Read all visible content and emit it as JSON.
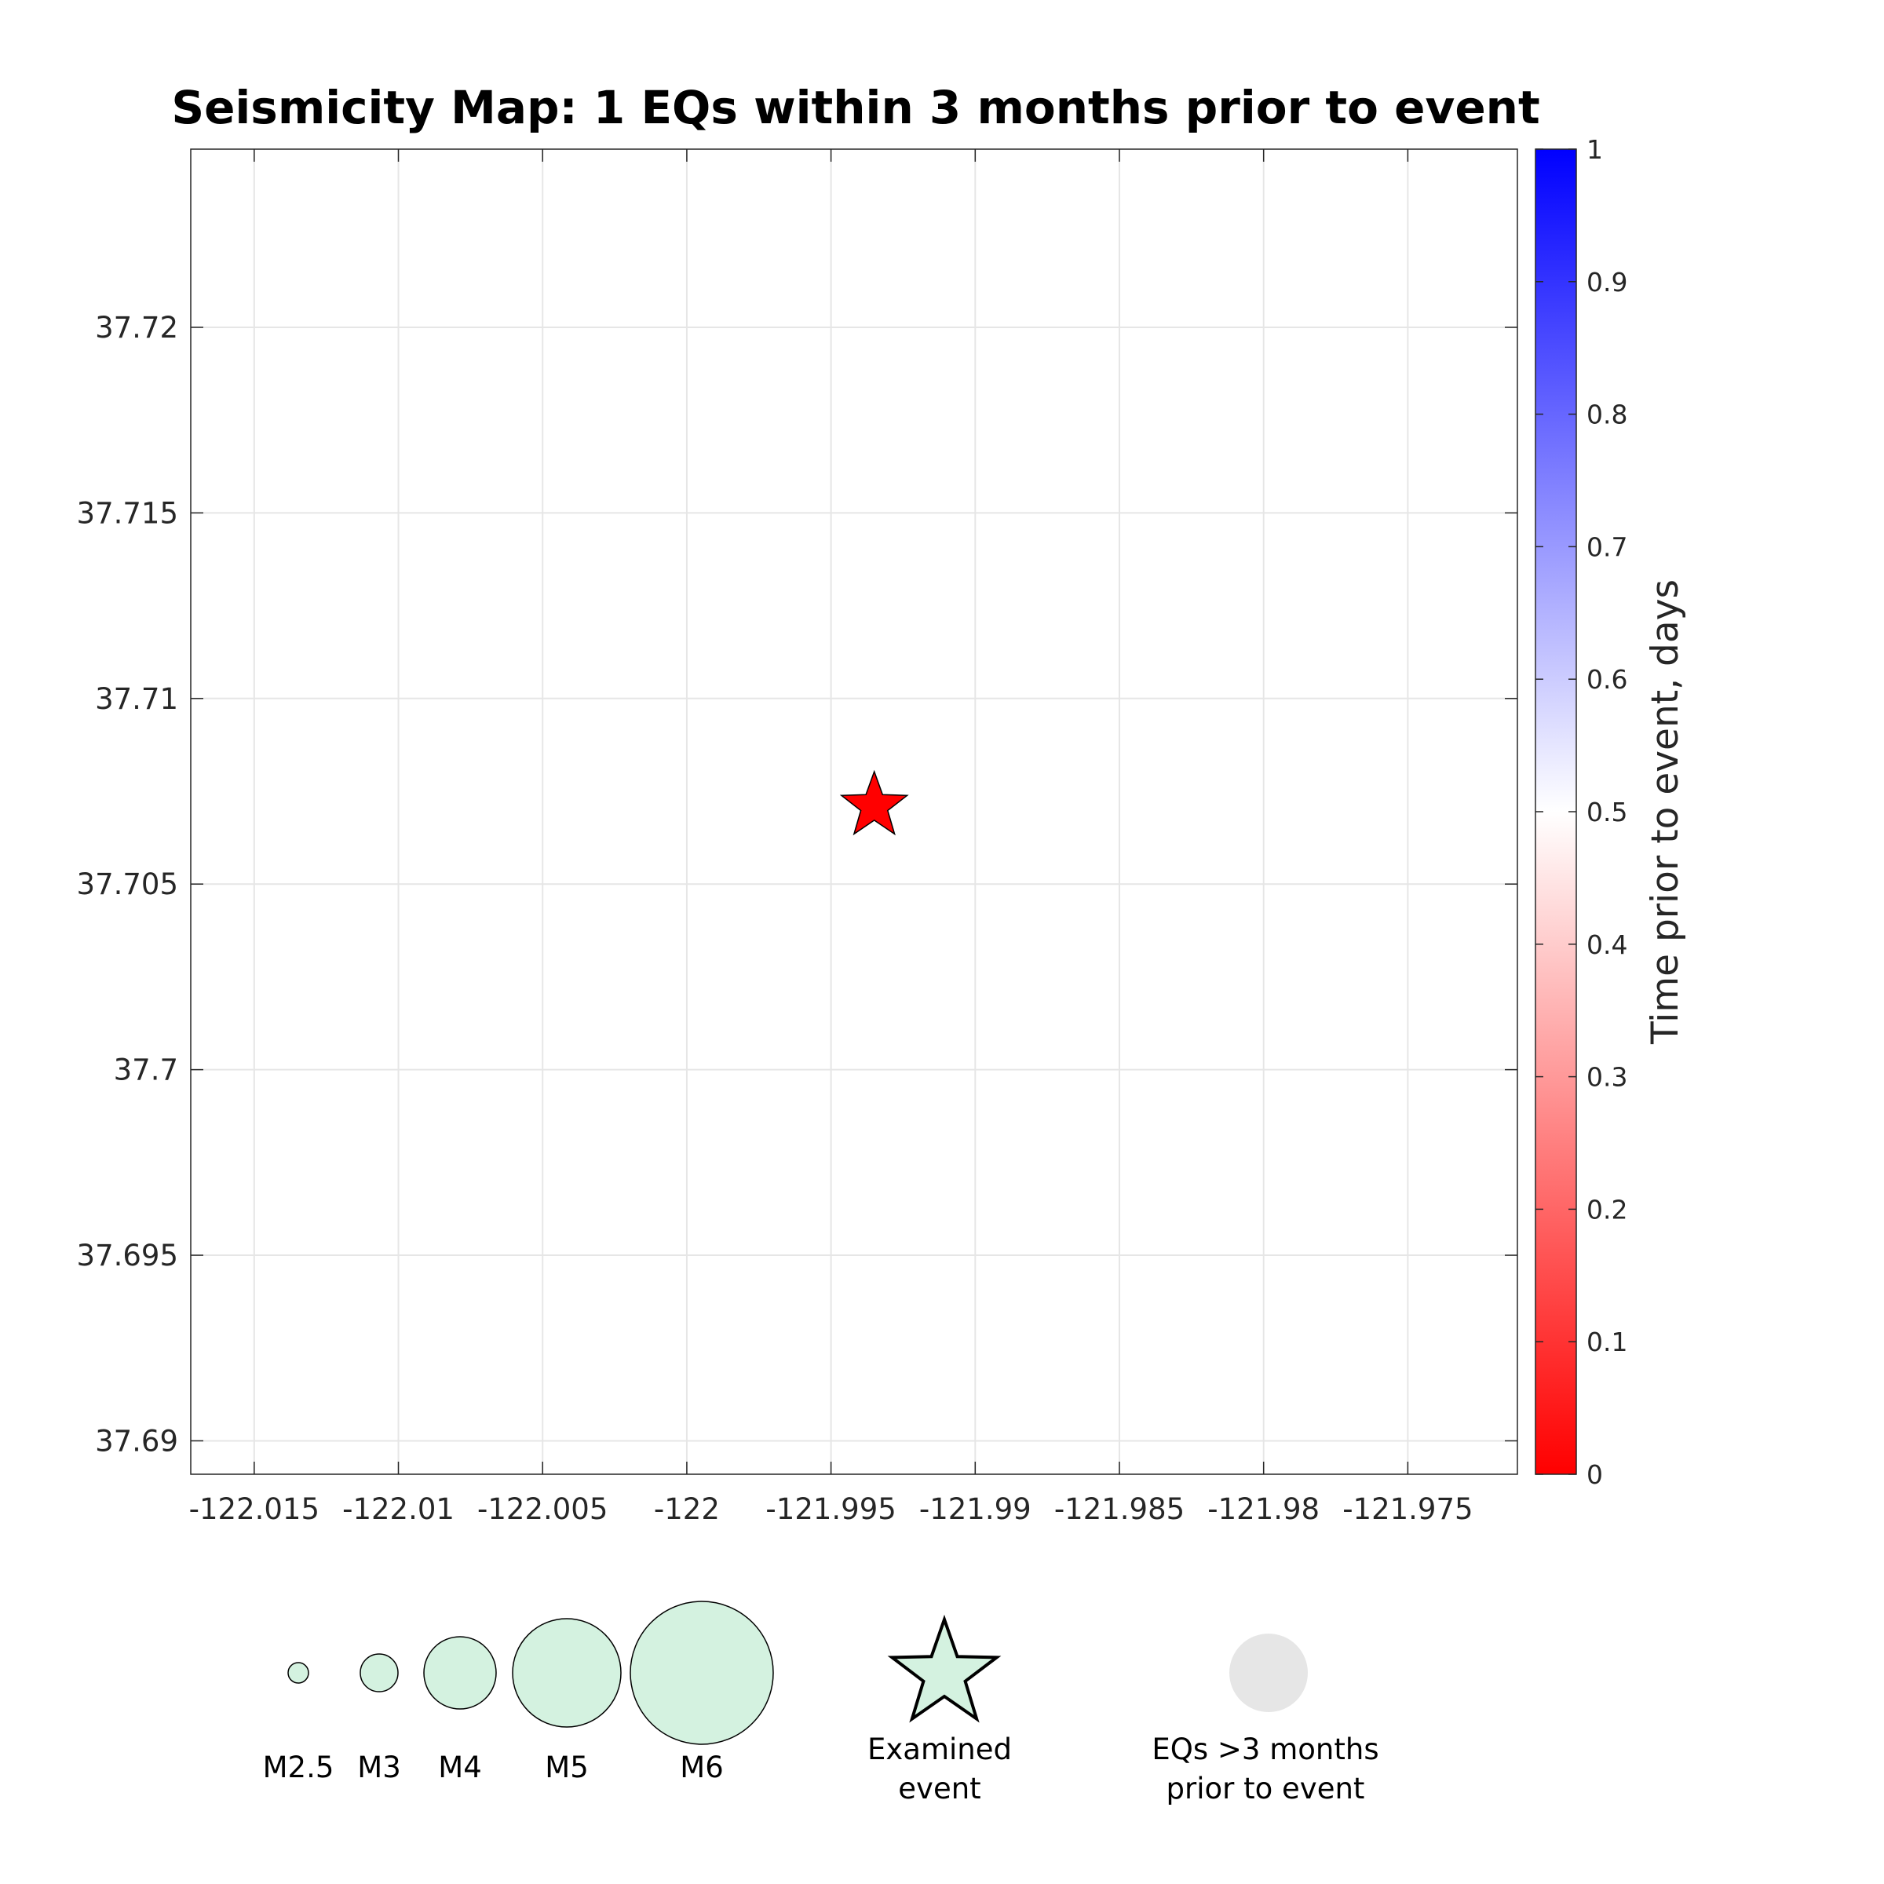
{
  "chart_data": {
    "type": "scatter",
    "title": "Seismicity Map: 1 EQs within 3 months prior to event",
    "xlabel": "",
    "ylabel": "",
    "xlim": [
      -122.0172,
      -121.9712
    ],
    "ylim": [
      37.6891,
      37.7248
    ],
    "x_ticks": [
      -122.015,
      -122.01,
      -122.005,
      -122.0,
      -121.995,
      -121.99,
      -121.985,
      -121.98,
      -121.975
    ],
    "x_tick_labels": [
      "-122.015",
      "-122.01",
      "-122.005",
      "-122",
      "-121.995",
      "-121.99",
      "-121.985",
      "-121.98",
      "-121.975"
    ],
    "y_ticks": [
      37.69,
      37.695,
      37.7,
      37.705,
      37.71,
      37.715,
      37.72
    ],
    "y_tick_labels": [
      "37.69",
      "37.695",
      "37.7",
      "37.705",
      "37.71",
      "37.715",
      "37.72"
    ],
    "grid": true,
    "points": [
      {
        "x": -121.9935,
        "y": 37.7071,
        "marker": "star",
        "color": "#ff0000"
      }
    ],
    "colorbar": {
      "label": "Time prior to event, days",
      "range": [
        0,
        1
      ],
      "ticks": [
        0,
        0.1,
        0.2,
        0.3,
        0.4,
        0.5,
        0.6,
        0.7,
        0.8,
        0.9,
        1
      ],
      "tick_labels": [
        "0",
        "0.1",
        "0.2",
        "0.3",
        "0.4",
        "0.5",
        "0.6",
        "0.7",
        "0.8",
        "0.9",
        "1"
      ],
      "colors": {
        "low": "#ff0000",
        "mid": "#ffffff",
        "high": "#0000ff"
      },
      "position": "right"
    },
    "legend": {
      "position": "bottom",
      "magnitudes": [
        {
          "label": "M2.5",
          "magnitude": 2.5
        },
        {
          "label": "M3",
          "magnitude": 3
        },
        {
          "label": "M4",
          "magnitude": 4
        },
        {
          "label": "M5",
          "magnitude": 5
        },
        {
          "label": "M6",
          "magnitude": 6
        }
      ],
      "magnitude_fill": "#d4f2e0",
      "examined_event": {
        "label_lines": [
          "Examined",
          "event"
        ],
        "fill": "#d4f2e0"
      },
      "older_eqs": {
        "label_lines": [
          "EQs >3 months",
          "prior to event"
        ],
        "fill": "#e6e6e6"
      }
    }
  }
}
